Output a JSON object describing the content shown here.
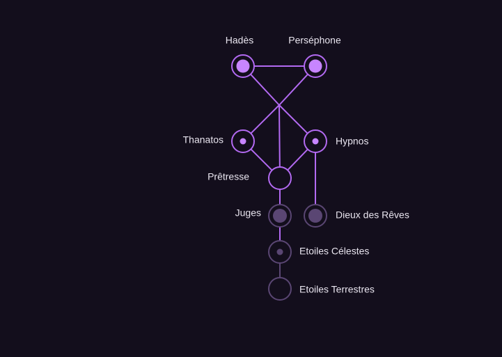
{
  "colors": {
    "background": "#130e1c",
    "bright": "#b36af2",
    "bright_fill": "#c785ff",
    "dim": "#5a4673",
    "dim_fill": "#5a4673",
    "label": "#e8e4ee"
  },
  "nodes": [
    {
      "id": "hades",
      "label": "Hadès",
      "state": "bright",
      "marker": "large"
    },
    {
      "id": "persephone",
      "label": "Perséphone",
      "state": "bright",
      "marker": "large"
    },
    {
      "id": "thanatos",
      "label": "Thanatos",
      "state": "bright",
      "marker": "small"
    },
    {
      "id": "hypnos",
      "label": "Hypnos",
      "state": "bright",
      "marker": "small"
    },
    {
      "id": "pretresse",
      "label": "Prêtresse",
      "state": "bright",
      "marker": "none"
    },
    {
      "id": "juges",
      "label": "Juges",
      "state": "dim",
      "marker": "large"
    },
    {
      "id": "dieux-reves",
      "label": "Dieux des Rêves",
      "state": "dim",
      "marker": "large"
    },
    {
      "id": "etoiles-celestes",
      "label": "Etoiles Célestes",
      "state": "dim",
      "marker": "small"
    },
    {
      "id": "etoiles-terrestres",
      "label": "Etoiles Terrestres",
      "state": "dim",
      "marker": "none"
    }
  ],
  "links": [
    {
      "from": "hades",
      "to": "persephone",
      "state": "bright"
    },
    {
      "from": "hades",
      "to": "hub",
      "state": "bright"
    },
    {
      "from": "persephone",
      "to": "hub",
      "state": "bright"
    },
    {
      "from": "hub",
      "to": "thanatos",
      "state": "bright"
    },
    {
      "from": "hub",
      "to": "hypnos",
      "state": "bright"
    },
    {
      "from": "hub",
      "to": "pretresse",
      "state": "bright"
    },
    {
      "from": "thanatos",
      "to": "pretresse",
      "state": "bright"
    },
    {
      "from": "hypnos",
      "to": "pretresse",
      "state": "bright"
    },
    {
      "from": "hypnos",
      "to": "dieux-reves",
      "state": "bright"
    },
    {
      "from": "pretresse",
      "to": "juges",
      "state": "bright"
    },
    {
      "from": "juges",
      "to": "etoiles-celestes",
      "state": "bright"
    },
    {
      "from": "etoiles-celestes",
      "to": "etoiles-terrestres",
      "state": "dim"
    }
  ]
}
